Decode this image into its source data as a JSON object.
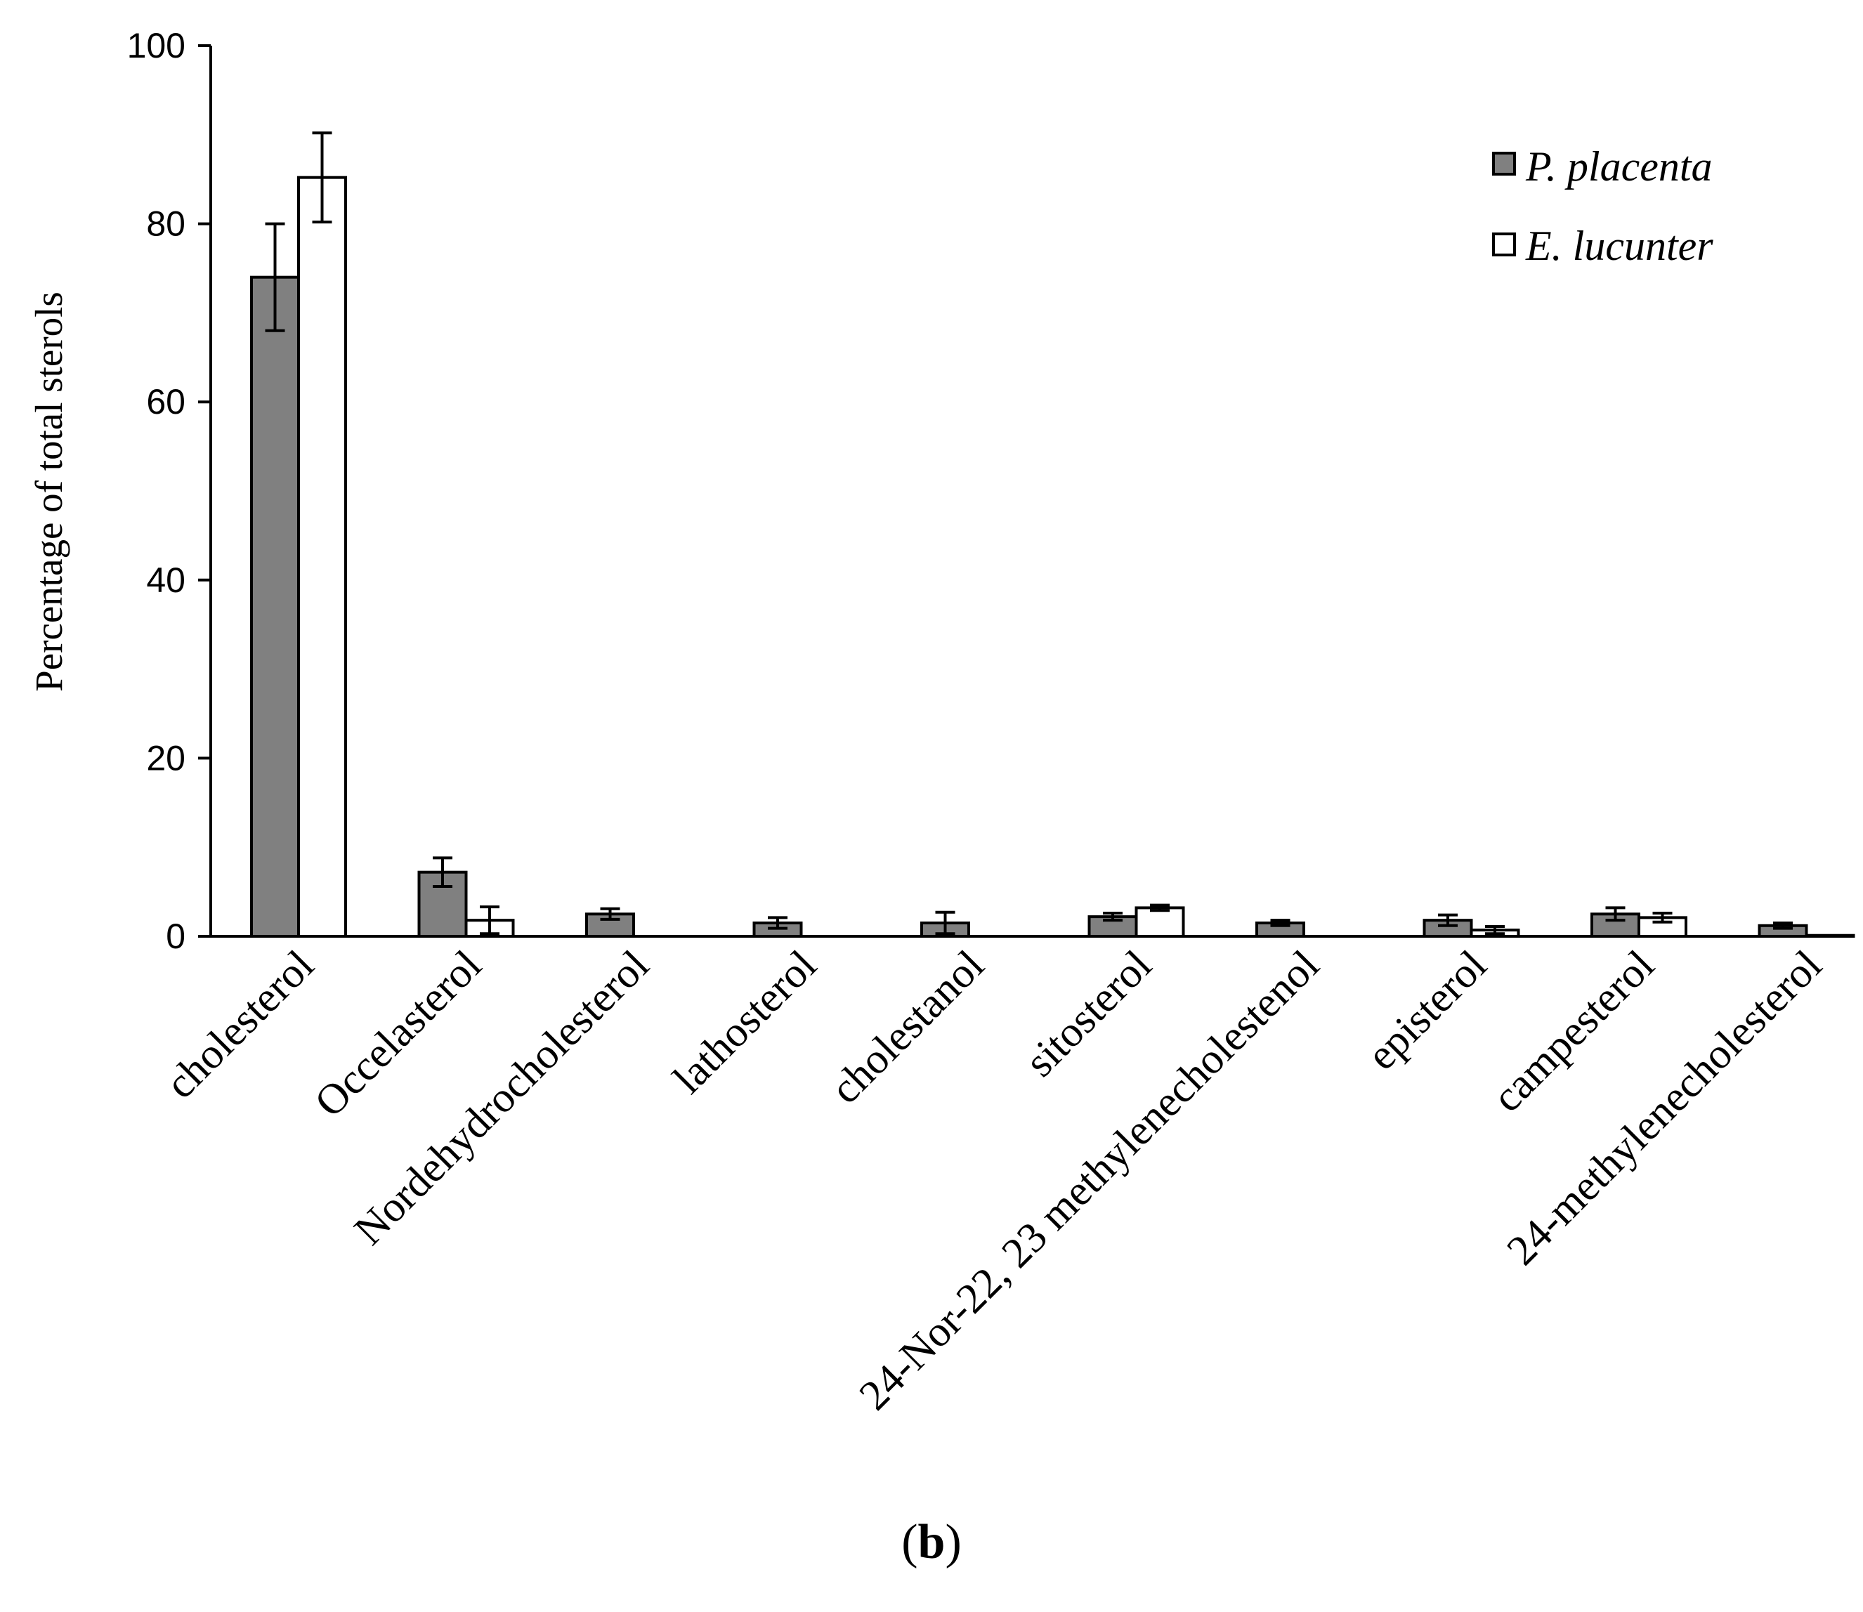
{
  "chart_data": {
    "type": "bar",
    "title": "",
    "xlabel": "",
    "ylabel": "Percentage of total sterols",
    "ylim": [
      0,
      100
    ],
    "yticks": [
      0,
      20,
      40,
      60,
      80,
      100
    ],
    "ytick_labels": [
      "0",
      "20",
      "40",
      "60",
      "80",
      "100"
    ],
    "grid": false,
    "legend_position": "top-right",
    "categories": [
      "cholesterol",
      "Occelasterol",
      "Nordehydrocholesterol",
      "lathosterol",
      "cholestanol",
      "sitosterol",
      "24-Nor-22, 23 methylenecholestenol",
      "episterol",
      "campesterol",
      "24-methylenecholesterol"
    ],
    "series": [
      {
        "name": "P. placenta",
        "color": "#808080",
        "values": [
          74.0,
          7.2,
          2.5,
          1.5,
          1.5,
          2.2,
          1.5,
          1.8,
          2.5,
          1.2
        ],
        "errors": [
          6.0,
          1.6,
          0.6,
          0.6,
          1.2,
          0.4,
          0.3,
          0.6,
          0.7,
          0.3
        ]
      },
      {
        "name": "E. lucunter",
        "color": "#ffffff",
        "values": [
          85.2,
          1.8,
          0,
          0,
          0,
          3.2,
          0,
          0.7,
          2.1,
          0.1
        ],
        "errors": [
          5.0,
          1.5,
          0,
          0,
          0,
          0.3,
          0,
          0.4,
          0.5,
          0
        ]
      }
    ],
    "panel_label": {
      "open": "(",
      "letter": "b",
      "close": ")"
    }
  }
}
